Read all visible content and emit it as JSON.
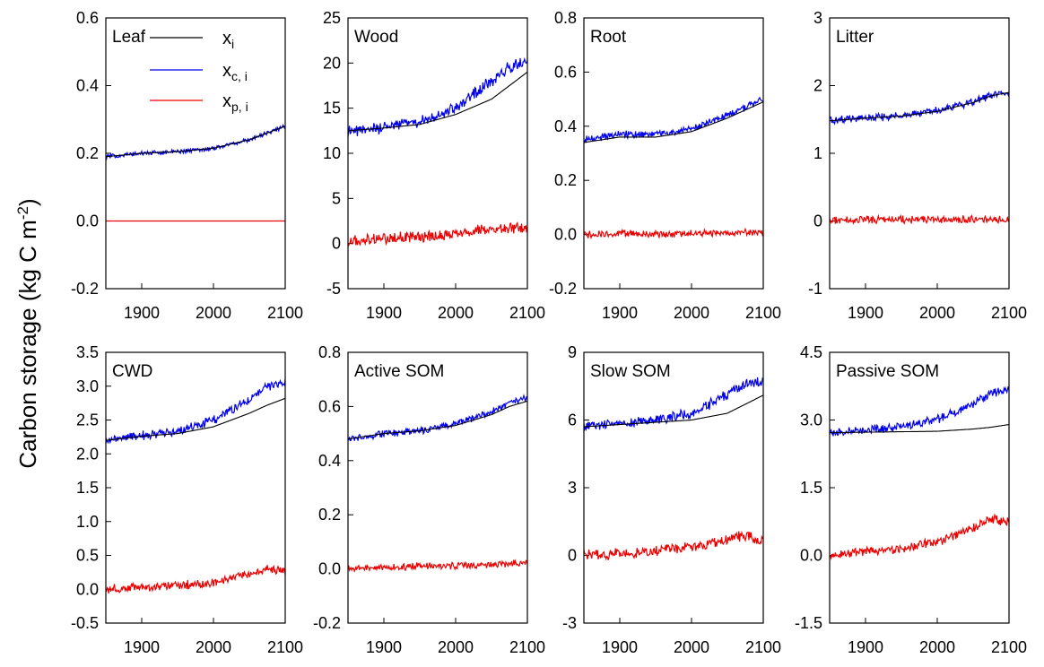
{
  "figure": {
    "ylabel": "Carbon storage (kg C m",
    "ylabel_sup": "-2",
    "ylabel_close": ")"
  },
  "legend": [
    {
      "name": "x",
      "sub": "i",
      "color": "#000000"
    },
    {
      "name": "x",
      "sub": "c, i",
      "color": "#0000ee"
    },
    {
      "name": "x",
      "sub": "p, i",
      "color": "#ee0000"
    }
  ],
  "chart_data": [
    {
      "type": "line",
      "title": "Leaf",
      "xlim": [
        1850,
        2100
      ],
      "ylim": [
        -0.2,
        0.6
      ],
      "xticks": [
        1900,
        2000,
        2100
      ],
      "xtick_labels": [
        "1900",
        "2000",
        "2100"
      ],
      "yticks": [
        -0.2,
        0.0,
        0.2,
        0.4,
        0.6
      ],
      "ytick_labels": [
        "-0.2",
        "0.0",
        "0.2",
        "0.4",
        "0.6"
      ],
      "grid": false,
      "legend": "top-right",
      "x": [
        1850,
        1900,
        1950,
        2000,
        2050,
        2075,
        2100
      ],
      "series": [
        {
          "name": "x_i",
          "color": "#000000",
          "values": [
            0.19,
            0.2,
            0.205,
            0.215,
            0.24,
            0.26,
            0.28
          ]
        },
        {
          "name": "x_c,i",
          "color": "#0000ee",
          "values": [
            0.19,
            0.2,
            0.205,
            0.215,
            0.24,
            0.26,
            0.28
          ]
        },
        {
          "name": "x_p,i",
          "color": "#ee0000",
          "values": [
            0.0,
            0.0,
            0.0,
            0.0,
            0.0,
            0.0,
            0.0
          ]
        }
      ]
    },
    {
      "type": "line",
      "title": "Wood",
      "xlim": [
        1850,
        2100
      ],
      "ylim": [
        -5,
        25
      ],
      "xticks": [
        1900,
        2000,
        2100
      ],
      "xtick_labels": [
        "1900",
        "2000",
        "2100"
      ],
      "yticks": [
        -5,
        0,
        5,
        10,
        15,
        20,
        25
      ],
      "ytick_labels": [
        "-5",
        "0",
        "5",
        "10",
        "15",
        "20",
        "25"
      ],
      "grid": false,
      "x": [
        1850,
        1900,
        1950,
        2000,
        2050,
        2075,
        2100
      ],
      "series": [
        {
          "name": "x_i",
          "color": "#000000",
          "values": [
            12.5,
            12.8,
            13.2,
            14.3,
            16.0,
            17.5,
            19.0
          ]
        },
        {
          "name": "x_c,i",
          "color": "#0000ee",
          "values": [
            12.5,
            12.9,
            13.5,
            15.0,
            18.0,
            19.5,
            20.2
          ]
        },
        {
          "name": "x_p,i",
          "color": "#ee0000",
          "values": [
            0.2,
            0.5,
            0.8,
            1.0,
            1.6,
            1.8,
            1.5
          ]
        }
      ]
    },
    {
      "type": "line",
      "title": "Root",
      "xlim": [
        1850,
        2100
      ],
      "ylim": [
        -0.2,
        0.8
      ],
      "xticks": [
        1900,
        2000,
        2100
      ],
      "xtick_labels": [
        "1900",
        "2000",
        "2100"
      ],
      "yticks": [
        -0.2,
        0.0,
        0.2,
        0.4,
        0.6,
        0.8
      ],
      "ytick_labels": [
        "-0.2",
        "0.0",
        "0.2",
        "0.4",
        "0.6",
        "0.8"
      ],
      "grid": false,
      "x": [
        1850,
        1900,
        1950,
        2000,
        2050,
        2075,
        2100
      ],
      "series": [
        {
          "name": "x_i",
          "color": "#000000",
          "values": [
            0.34,
            0.36,
            0.36,
            0.38,
            0.43,
            0.46,
            0.49
          ]
        },
        {
          "name": "x_c,i",
          "color": "#0000ee",
          "values": [
            0.35,
            0.37,
            0.37,
            0.39,
            0.44,
            0.47,
            0.5
          ]
        },
        {
          "name": "x_p,i",
          "color": "#ee0000",
          "values": [
            0.0,
            0.005,
            0.0,
            0.005,
            0.005,
            0.01,
            0.005
          ]
        }
      ]
    },
    {
      "type": "line",
      "title": "Litter",
      "xlim": [
        1850,
        2100
      ],
      "ylim": [
        -1,
        3
      ],
      "xticks": [
        1900,
        2000,
        2100
      ],
      "xtick_labels": [
        "1900",
        "2000",
        "2100"
      ],
      "yticks": [
        -1,
        0,
        1,
        2,
        3
      ],
      "ytick_labels": [
        "-1",
        "0",
        "1",
        "2",
        "3"
      ],
      "grid": false,
      "x": [
        1850,
        1900,
        1950,
        2000,
        2050,
        2075,
        2100
      ],
      "series": [
        {
          "name": "x_i",
          "color": "#000000",
          "values": [
            1.48,
            1.52,
            1.55,
            1.62,
            1.75,
            1.85,
            1.9
          ]
        },
        {
          "name": "x_c,i",
          "color": "#0000ee",
          "values": [
            1.48,
            1.52,
            1.56,
            1.63,
            1.76,
            1.86,
            1.9
          ]
        },
        {
          "name": "x_p,i",
          "color": "#ee0000",
          "values": [
            0.0,
            0.02,
            0.02,
            0.02,
            0.02,
            0.02,
            0.02
          ]
        }
      ]
    },
    {
      "type": "line",
      "title": "CWD",
      "xlim": [
        1850,
        2100
      ],
      "ylim": [
        -0.5,
        3.5
      ],
      "xticks": [
        1900,
        2000,
        2100
      ],
      "xtick_labels": [
        "1900",
        "2000",
        "2100"
      ],
      "yticks": [
        -0.5,
        0.0,
        0.5,
        1.0,
        1.5,
        2.0,
        2.5,
        3.0,
        3.5
      ],
      "ytick_labels": [
        "-0.5",
        "0.0",
        "0.5",
        "1.0",
        "1.5",
        "2.0",
        "2.5",
        "3.0",
        "3.5"
      ],
      "grid": false,
      "x": [
        1850,
        1900,
        1950,
        2000,
        2050,
        2075,
        2100
      ],
      "series": [
        {
          "name": "x_i",
          "color": "#000000",
          "values": [
            2.2,
            2.26,
            2.3,
            2.4,
            2.6,
            2.72,
            2.82
          ]
        },
        {
          "name": "x_c,i",
          "color": "#0000ee",
          "values": [
            2.2,
            2.27,
            2.33,
            2.5,
            2.8,
            3.0,
            3.05
          ]
        },
        {
          "name": "x_p,i",
          "color": "#ee0000",
          "values": [
            0.0,
            0.03,
            0.05,
            0.1,
            0.22,
            0.3,
            0.25
          ]
        }
      ]
    },
    {
      "type": "line",
      "title": "Active SOM",
      "xlim": [
        1850,
        2100
      ],
      "ylim": [
        -0.2,
        0.8
      ],
      "xticks": [
        1900,
        2000,
        2100
      ],
      "xtick_labels": [
        "1900",
        "2000",
        "2100"
      ],
      "yticks": [
        -0.2,
        0.0,
        0.2,
        0.4,
        0.6,
        0.8
      ],
      "ytick_labels": [
        "-0.2",
        "0.0",
        "0.2",
        "0.4",
        "0.6",
        "0.8"
      ],
      "grid": false,
      "x": [
        1850,
        1900,
        1950,
        2000,
        2050,
        2075,
        2100
      ],
      "series": [
        {
          "name": "x_i",
          "color": "#000000",
          "values": [
            0.48,
            0.5,
            0.51,
            0.53,
            0.57,
            0.6,
            0.62
          ]
        },
        {
          "name": "x_c,i",
          "color": "#0000ee",
          "values": [
            0.48,
            0.5,
            0.51,
            0.535,
            0.58,
            0.61,
            0.63
          ]
        },
        {
          "name": "x_p,i",
          "color": "#ee0000",
          "values": [
            0.0,
            0.005,
            0.01,
            0.01,
            0.015,
            0.02,
            0.02
          ]
        }
      ]
    },
    {
      "type": "line",
      "title": "Slow SOM",
      "xlim": [
        1850,
        2100
      ],
      "ylim": [
        -3,
        9
      ],
      "xticks": [
        1900,
        2000,
        2100
      ],
      "xtick_labels": [
        "1900",
        "2000",
        "2100"
      ],
      "yticks": [
        -3,
        0,
        3,
        6,
        9
      ],
      "ytick_labels": [
        "-3",
        "0",
        "3",
        "6",
        "9"
      ],
      "grid": false,
      "x": [
        1850,
        1900,
        1950,
        2000,
        2050,
        2075,
        2100
      ],
      "series": [
        {
          "name": "x_i",
          "color": "#000000",
          "values": [
            5.7,
            5.8,
            5.9,
            6.0,
            6.3,
            6.7,
            7.1
          ]
        },
        {
          "name": "x_c,i",
          "color": "#0000ee",
          "values": [
            5.7,
            5.85,
            6.0,
            6.3,
            7.1,
            7.6,
            7.7
          ]
        },
        {
          "name": "x_p,i",
          "color": "#ee0000",
          "values": [
            0.0,
            0.1,
            0.2,
            0.35,
            0.7,
            0.9,
            0.6
          ]
        }
      ]
    },
    {
      "type": "line",
      "title": "Passive SOM",
      "xlim": [
        1850,
        2100
      ],
      "ylim": [
        -1.5,
        4.5
      ],
      "xticks": [
        1900,
        2000,
        2100
      ],
      "xtick_labels": [
        "1900",
        "2000",
        "2100"
      ],
      "yticks": [
        -1.5,
        0.0,
        1.5,
        3.0,
        4.5
      ],
      "ytick_labels": [
        "-1.5",
        "0.0",
        "1.5",
        "3.0",
        "4.5"
      ],
      "grid": false,
      "x": [
        1850,
        1900,
        1950,
        2000,
        2050,
        2075,
        2100
      ],
      "series": [
        {
          "name": "x_i",
          "color": "#000000",
          "values": [
            2.72,
            2.73,
            2.74,
            2.75,
            2.8,
            2.84,
            2.9
          ]
        },
        {
          "name": "x_c,i",
          "color": "#0000ee",
          "values": [
            2.72,
            2.78,
            2.85,
            3.0,
            3.35,
            3.6,
            3.7
          ]
        },
        {
          "name": "x_p,i",
          "color": "#ee0000",
          "values": [
            0.0,
            0.08,
            0.15,
            0.3,
            0.6,
            0.8,
            0.75
          ]
        }
      ]
    }
  ]
}
